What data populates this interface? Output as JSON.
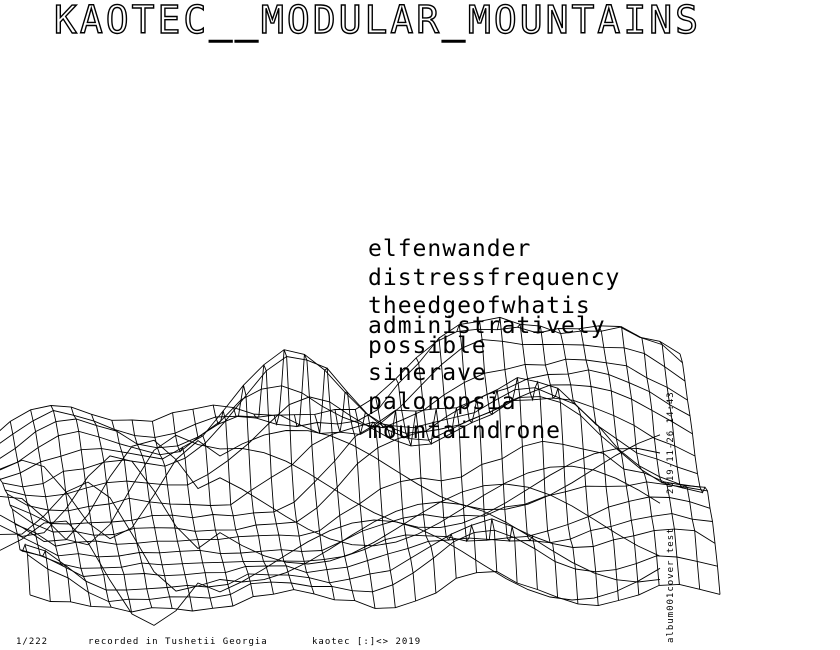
{
  "title": "KAOTEC__MODULAR_MOUNTAINS",
  "tracks": [
    "elfenwander",
    "distressfrequency",
    [
      "theedgeofwhatis",
      "administratively",
      "possible"
    ],
    "sinerave",
    "palonopsia",
    "mountaindrone"
  ],
  "side": {
    "date": "2019-11-26 14:43",
    "version": "album001cover test"
  },
  "footer": {
    "edition": "1/222",
    "location": "recorded in Tushetii Georgia",
    "credit": "kaotec [:]<> 2019"
  },
  "colors": {
    "ink": "#000000",
    "paper": "#ffffff"
  }
}
